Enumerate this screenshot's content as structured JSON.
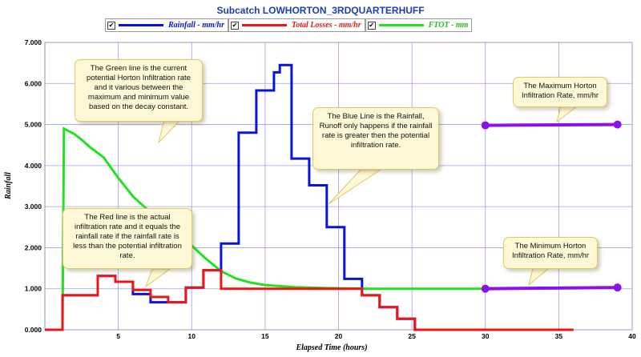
{
  "chart_data": {
    "type": "line",
    "title": "Subcatch LOWHORTON_3RDQUARTERHUFF",
    "xlabel": "Elapsed Time (hours)",
    "ylabel": "Rainfall",
    "xlim": [
      0,
      40
    ],
    "ylim": [
      0,
      7
    ],
    "x_ticks": [
      "5",
      "10",
      "15",
      "20",
      "25",
      "30",
      "35",
      "40"
    ],
    "y_ticks": [
      "0.000",
      "1.000",
      "2.000",
      "3.000",
      "4.000",
      "5.000",
      "6.000",
      "7.000"
    ],
    "grid": true,
    "legend_position": "top",
    "series": [
      {
        "name": "Rainfall - mm/hr",
        "color": "#0a14d8",
        "points": [
          [
            0,
            0
          ],
          [
            1.2,
            0
          ],
          [
            1.2,
            0.84
          ],
          [
            3.6,
            0.84
          ],
          [
            3.6,
            1.31
          ],
          [
            4.8,
            1.31
          ],
          [
            4.8,
            1.17
          ],
          [
            6,
            1.17
          ],
          [
            6,
            0.87
          ],
          [
            7.2,
            0.87
          ],
          [
            7.2,
            0.67
          ],
          [
            9.6,
            0.67
          ],
          [
            9.6,
            1.03
          ],
          [
            10.8,
            1.03
          ],
          [
            10.8,
            1.45
          ],
          [
            12,
            1.45
          ],
          [
            12,
            2.1
          ],
          [
            13.2,
            2.1
          ],
          [
            13.2,
            4.8
          ],
          [
            14.4,
            4.8
          ],
          [
            14.4,
            5.83
          ],
          [
            15.6,
            5.83
          ],
          [
            15.6,
            6.27
          ],
          [
            16,
            6.27
          ],
          [
            16,
            6.45
          ],
          [
            16.8,
            6.45
          ],
          [
            16.8,
            4.17
          ],
          [
            18,
            4.17
          ],
          [
            18,
            3.52
          ],
          [
            19.2,
            3.52
          ],
          [
            19.2,
            2.5
          ],
          [
            20.4,
            2.5
          ],
          [
            20.4,
            1.24
          ],
          [
            21.6,
            1.24
          ],
          [
            21.6,
            0.84
          ],
          [
            22.8,
            0.84
          ],
          [
            22.8,
            0.55
          ],
          [
            24,
            0.55
          ],
          [
            24,
            0.27
          ],
          [
            25.2,
            0.27
          ],
          [
            25.2,
            0
          ],
          [
            36,
            0
          ]
        ]
      },
      {
        "name": "Total Losses - mm/hr",
        "color": "#e81818",
        "points": [
          [
            0,
            0
          ],
          [
            1.2,
            0
          ],
          [
            1.2,
            0.84
          ],
          [
            3.6,
            0.84
          ],
          [
            3.6,
            1.31
          ],
          [
            4.8,
            1.31
          ],
          [
            4.8,
            1.17
          ],
          [
            6,
            1.17
          ],
          [
            6,
            0.97
          ],
          [
            7.2,
            0.97
          ],
          [
            7.2,
            0.8
          ],
          [
            8.4,
            0.8
          ],
          [
            8.4,
            0.67
          ],
          [
            9.6,
            0.67
          ],
          [
            9.6,
            1.03
          ],
          [
            10.8,
            1.03
          ],
          [
            10.8,
            1.45
          ],
          [
            12,
            1.45
          ],
          [
            12,
            1.0
          ],
          [
            21.6,
            1.0
          ],
          [
            21.6,
            0.84
          ],
          [
            22.8,
            0.84
          ],
          [
            22.8,
            0.55
          ],
          [
            24,
            0.55
          ],
          [
            24,
            0.27
          ],
          [
            25.2,
            0.27
          ],
          [
            25.2,
            0
          ],
          [
            36,
            0
          ]
        ]
      },
      {
        "name": "FTOT - mm",
        "color": "#22e022",
        "points": [
          [
            0,
            0
          ],
          [
            1.2,
            0
          ],
          [
            1.3,
            4.9
          ],
          [
            2,
            4.77
          ],
          [
            2.5,
            4.63
          ],
          [
            3,
            4.47
          ],
          [
            4,
            4.2
          ],
          [
            5,
            3.7
          ],
          [
            6,
            3.25
          ],
          [
            7,
            2.92
          ],
          [
            8,
            2.65
          ],
          [
            9,
            2.38
          ],
          [
            10,
            2.05
          ],
          [
            11,
            1.72
          ],
          [
            12,
            1.43
          ],
          [
            13,
            1.25
          ],
          [
            14,
            1.15
          ],
          [
            15,
            1.09
          ],
          [
            17,
            1.04
          ],
          [
            19,
            1.02
          ],
          [
            22,
            1.0
          ],
          [
            26,
            1.0
          ],
          [
            30,
            1.0
          ]
        ]
      },
      {
        "name": "",
        "color": "#8a12e8",
        "points": [
          [
            30,
            4.98
          ],
          [
            39,
            5.0
          ]
        ]
      },
      {
        "name": "",
        "color": "#8a12e8",
        "points": [
          [
            30,
            1.0
          ],
          [
            39,
            1.03
          ]
        ]
      }
    ]
  },
  "annotations": {
    "green_note": "The Green line is the current potential Horton Infiltration rate and it various between the maximum and minimum value based on the decay constant.",
    "blue_note": "The Blue Line is the Rainfall, Runoff only happens if the rainfall rate is greater then the potential infiltration rate.",
    "red_note": "The Red line is the actual infiltration rate and it equals the rainfall rate if the rainfall rate is less than the potential infiltration rate.",
    "max_note": "The Maximum Horton Infiltration Rate, mm/hr",
    "min_note": "The Minimum Horton Infiltration Rate, mm/hr"
  },
  "checkbox_mark": "✔"
}
